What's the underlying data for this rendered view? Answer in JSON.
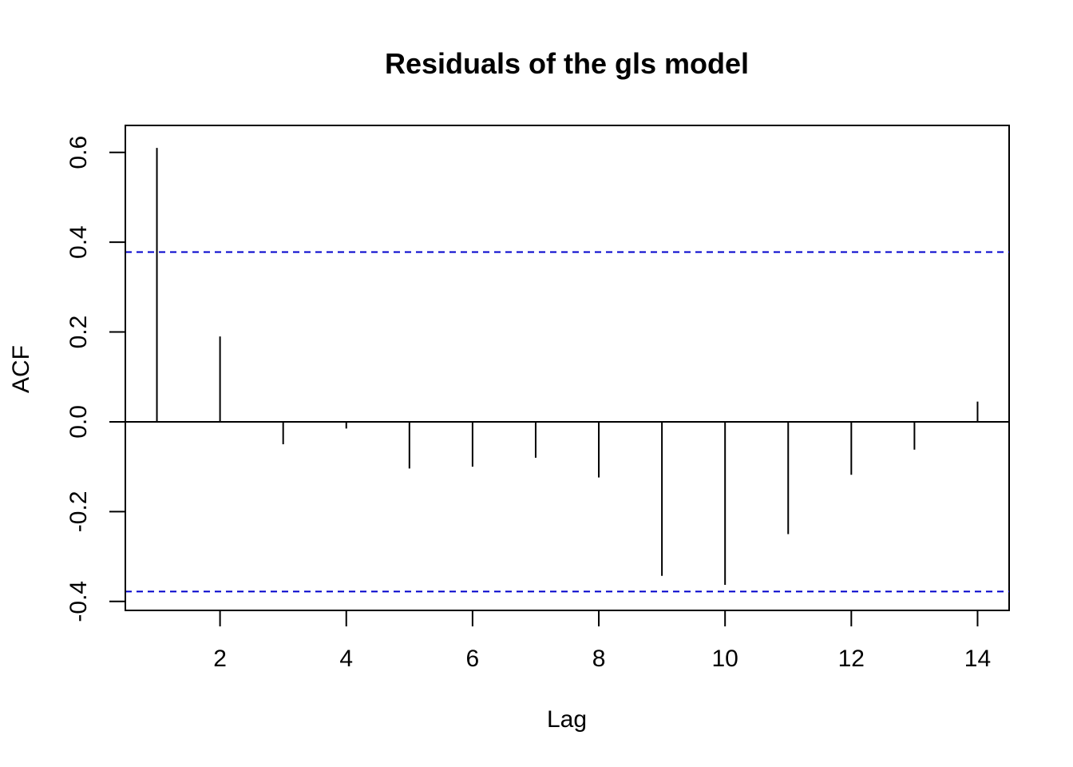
{
  "chart_data": {
    "type": "bar",
    "subtype": "acf-lollipop",
    "title": "Residuals of the gls model",
    "xlabel": "Lag",
    "ylabel": "ACF",
    "x": [
      1,
      2,
      3,
      4,
      5,
      6,
      7,
      8,
      9,
      10,
      11,
      12,
      13,
      14
    ],
    "values": [
      0.61,
      0.19,
      -0.05,
      -0.015,
      -0.104,
      -0.1,
      -0.08,
      -0.124,
      -0.343,
      -0.363,
      -0.25,
      -0.118,
      -0.062,
      0.045
    ],
    "xlim": [
      0.5,
      14.5
    ],
    "ylim": [
      -0.42,
      0.66
    ],
    "x_ticks": [
      2,
      4,
      6,
      8,
      10,
      12,
      14
    ],
    "x_tick_labels": [
      "2",
      "4",
      "6",
      "8",
      "10",
      "12",
      "14"
    ],
    "y_ticks": [
      -0.4,
      -0.2,
      0.0,
      0.2,
      0.4,
      0.6
    ],
    "y_tick_labels": [
      "-0.4",
      "-0.2",
      "0.0",
      "0.2",
      "0.4",
      "0.6"
    ],
    "confidence_bounds": [
      0.378,
      -0.378
    ],
    "zero_line": true,
    "grid": false,
    "colors": {
      "bars": "#000000",
      "bounds": "#0000cc",
      "frame": "#000000",
      "zero_line": "#000000"
    }
  }
}
